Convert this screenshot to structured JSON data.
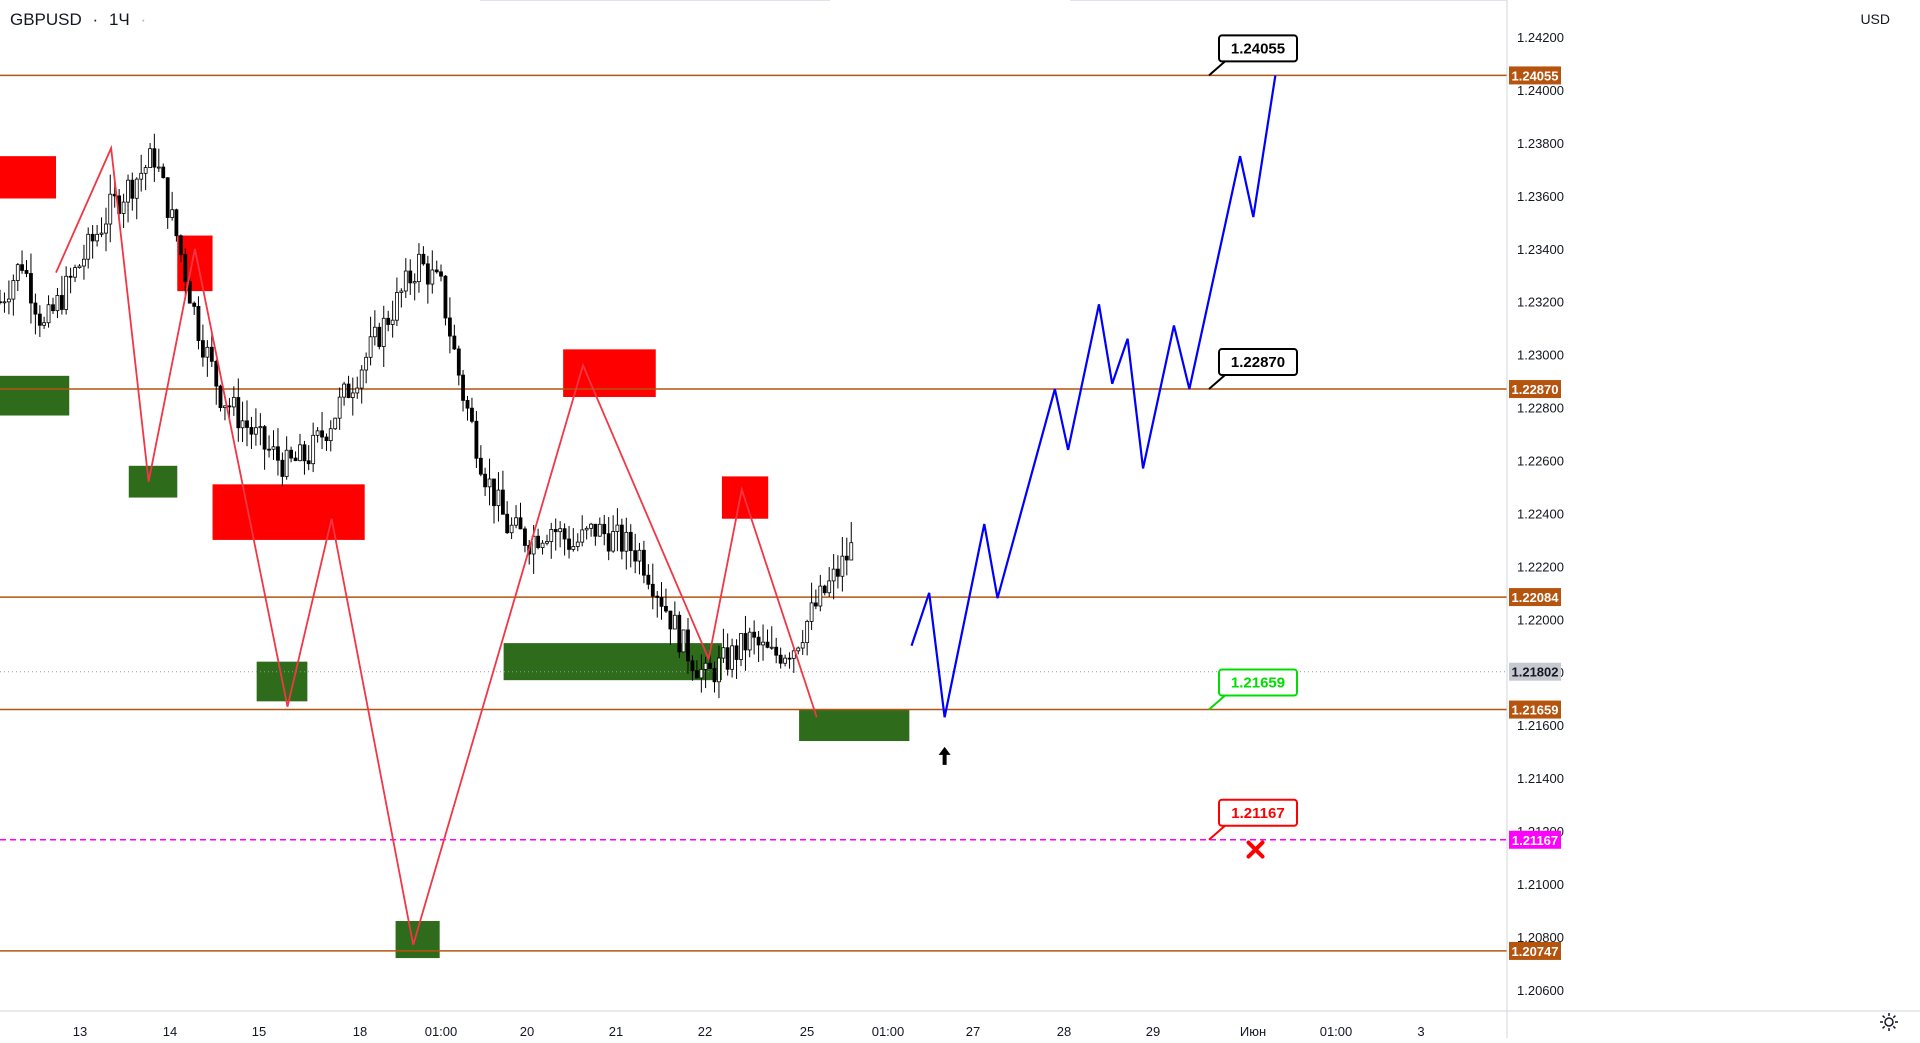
{
  "header": {
    "symbol": "GBPUSD",
    "separator": "·",
    "interval": "1Ч",
    "dot": "·"
  },
  "axis": {
    "currency": "USD"
  },
  "colors": {
    "bull": "#2e6b1a",
    "bear": "#ff0000",
    "level": "#b5540f",
    "stop": "#ff00ff",
    "forecast": "#0000ff",
    "zigzag": "#f23645",
    "target_green": "#00dd00",
    "target_red": "#ff0000"
  },
  "chart_data": {
    "type": "candlestick",
    "symbol": "GBPUSD",
    "timeframe": "1Ч",
    "ylim": [
      1.2052,
      1.2434
    ],
    "y_ticks": [
      "1.20600",
      "1.20800",
      "1.21000",
      "1.21200",
      "1.21400",
      "1.21600",
      "1.21800",
      "1.22000",
      "1.22200",
      "1.22400",
      "1.22600",
      "1.22800",
      "1.23000",
      "1.23200",
      "1.23400",
      "1.23600",
      "1.23800",
      "1.24000",
      "1.24200"
    ],
    "x_ticks": [
      "13",
      "14",
      "15",
      "18",
      "01:00",
      "20",
      "21",
      "22",
      "25",
      "01:00",
      "27",
      "28",
      "29",
      "Июн",
      "01:00",
      "3"
    ],
    "current_price": "1.21802",
    "levels": [
      {
        "value": 1.24055,
        "label": "1.24055"
      },
      {
        "value": 1.2287,
        "label": "1.22870"
      },
      {
        "value": 1.22084,
        "label": "1.22084"
      },
      {
        "value": 1.21659,
        "label": "1.21659"
      },
      {
        "value": 1.20747,
        "label": "1.20747"
      }
    ],
    "stop_level": {
      "value": 1.21167,
      "label": "1.21167"
    },
    "callouts": [
      {
        "label": "1.24055",
        "price": 1.24055,
        "style": "black"
      },
      {
        "label": "1.22870",
        "price": 1.2287,
        "style": "black"
      },
      {
        "label": "1.21659",
        "price": 1.21659,
        "style": "green"
      },
      {
        "label": "1.21167",
        "price": 1.21167,
        "style": "red"
      }
    ],
    "ohlc_path": [
      1.232,
      1.2335,
      1.231,
      1.2325,
      1.234,
      1.2355,
      1.2365,
      1.2375,
      1.2345,
      1.231,
      1.2285,
      1.2275,
      1.2265,
      1.2258,
      1.2262,
      1.2275,
      1.229,
      1.2305,
      1.232,
      1.2335,
      1.2325,
      1.2285,
      1.2255,
      1.2235,
      1.223,
      1.2235,
      1.2228,
      1.2234,
      1.223,
      1.2225,
      1.2208,
      1.219,
      1.2178,
      1.2185,
      1.2192,
      1.2186,
      1.219,
      1.2205,
      1.2218,
      1.2232,
      1.2228,
      1.2222,
      1.2212,
      1.2202,
      1.2188,
      1.2165,
      1.214,
      1.2118,
      1.2098,
      1.2082,
      1.2078,
      1.209,
      1.2103,
      1.2095,
      1.211,
      1.2145,
      1.218,
      1.2195,
      1.2198,
      1.2204,
      1.2195,
      1.2188,
      1.2195,
      1.2215,
      1.2235,
      1.2252,
      1.2262,
      1.2272,
      1.2278,
      1.2285,
      1.2278,
      1.2265,
      1.2255,
      1.2262,
      1.2268,
      1.2255,
      1.2245,
      1.2228,
      1.2232,
      1.2246,
      1.2265,
      1.2255,
      1.2238,
      1.2232,
      1.2224,
      1.2212,
      1.2198,
      1.219,
      1.2205,
      1.2225,
      1.224,
      1.2245,
      1.2238,
      1.2225,
      1.222,
      1.2215,
      1.2224,
      1.2218,
      1.2208,
      1.2185,
      1.2172,
      1.2168,
      1.2174,
      1.2177,
      1.2172,
      1.217,
      1.2175,
      1.2169,
      1.2174,
      1.2178,
      1.2173,
      1.2172,
      1.2166
    ],
    "supply_zones": [
      {
        "t": [
          -20,
          0
        ],
        "price": [
          1.2375,
          1.2359
        ]
      },
      {
        "t": [
          5.5,
          7.1
        ],
        "price": [
          1.2345,
          1.2324
        ]
      },
      {
        "t": [
          7.1,
          14
        ],
        "price": [
          1.2251,
          1.223
        ]
      },
      {
        "t": [
          23,
          27.2
        ],
        "price": [
          1.2302,
          1.2284
        ]
      },
      {
        "t": [
          30.2,
          32.3
        ],
        "price": [
          1.2254,
          1.2238
        ]
      }
    ],
    "demand_zones": [
      {
        "t": [
          -20,
          0.6
        ],
        "price": [
          1.2292,
          1.2277
        ]
      },
      {
        "t": [
          3.3,
          5.5
        ],
        "price": [
          1.2258,
          1.2246
        ]
      },
      {
        "t": [
          9.1,
          11.4
        ],
        "price": [
          1.2184,
          1.2169
        ]
      },
      {
        "t": [
          15.4,
          17.4
        ],
        "price": [
          1.2086,
          1.2072
        ]
      },
      {
        "t": [
          20.3,
          30.2
        ],
        "price": [
          1.2191,
          1.2177
        ]
      },
      {
        "t": [
          33.7,
          38.7
        ],
        "price": [
          1.2166,
          1.2154
        ]
      }
    ],
    "zigzag": [
      {
        "t": 0,
        "price": 1.2331
      },
      {
        "t": 2.5,
        "price": 1.2378
      },
      {
        "t": 4.2,
        "price": 1.2252
      },
      {
        "t": 6.3,
        "price": 1.234
      },
      {
        "t": 10.5,
        "price": 1.2167
      },
      {
        "t": 12.5,
        "price": 1.2238
      },
      {
        "t": 16.2,
        "price": 1.2077
      },
      {
        "t": 23.9,
        "price": 1.2296
      },
      {
        "t": 29.6,
        "price": 1.2185
      },
      {
        "t": 31.1,
        "price": 1.2249
      },
      {
        "t": 34.5,
        "price": 1.2163
      }
    ],
    "forecast_path": [
      {
        "t": 38.8,
        "price": 1.219
      },
      {
        "t": 39.6,
        "price": 1.221
      },
      {
        "t": 40.3,
        "price": 1.2163
      },
      {
        "t": 42.1,
        "price": 1.2236
      },
      {
        "t": 42.7,
        "price": 1.2208
      },
      {
        "t": 45.3,
        "price": 1.2287
      },
      {
        "t": 45.9,
        "price": 1.2264
      },
      {
        "t": 47.3,
        "price": 1.2319
      },
      {
        "t": 47.9,
        "price": 1.2289
      },
      {
        "t": 48.6,
        "price": 1.2306
      },
      {
        "t": 49.3,
        "price": 1.2257
      },
      {
        "t": 50.7,
        "price": 1.2311
      },
      {
        "t": 51.4,
        "price": 1.2287
      },
      {
        "t": 53.7,
        "price": 1.2375
      },
      {
        "t": 54.3,
        "price": 1.2352
      },
      {
        "t": 55.3,
        "price": 1.24055
      }
    ],
    "arrow_marker": {
      "t": 40.3,
      "price": 1.2148
    },
    "cancel_marker": {
      "t": 54.4,
      "price": 1.2113
    }
  }
}
